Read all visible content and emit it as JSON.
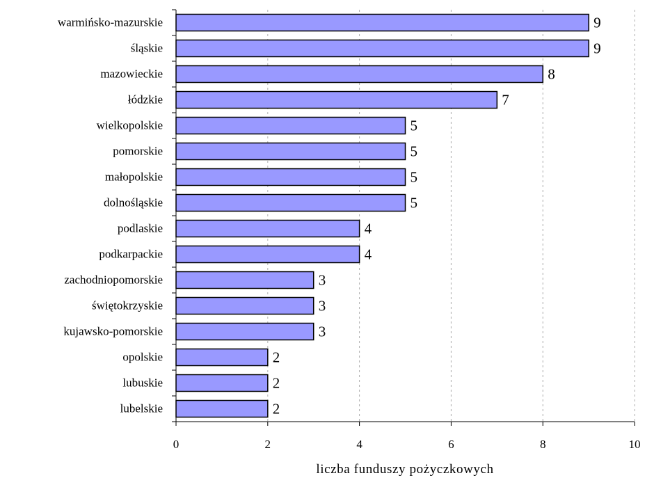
{
  "chart_data": {
    "type": "bar",
    "orientation": "horizontal",
    "categories": [
      "warmińsko-mazurskie",
      "śląskie",
      "mazowieckie",
      "łódzkie",
      "wielkopolskie",
      "pomorskie",
      "małopolskie",
      "dolnośląskie",
      "podlaskie",
      "podkarpackie",
      "zachodniopomorskie",
      "świętokrzyskie",
      "kujawsko-pomorskie",
      "opolskie",
      "lubuskie",
      "lubelskie"
    ],
    "values": [
      9,
      9,
      8,
      7,
      5,
      5,
      5,
      5,
      4,
      4,
      3,
      3,
      3,
      2,
      2,
      2
    ],
    "title": "",
    "xlabel": "liczba funduszy pożyczkowych",
    "ylabel": "",
    "xlim": [
      0,
      10
    ],
    "xticks": [
      "0",
      "2",
      "4",
      "6",
      "8",
      "10"
    ],
    "grid": "vertical-dashed",
    "bar_color": "#9999ff",
    "bar_edge_color": "#000000"
  }
}
